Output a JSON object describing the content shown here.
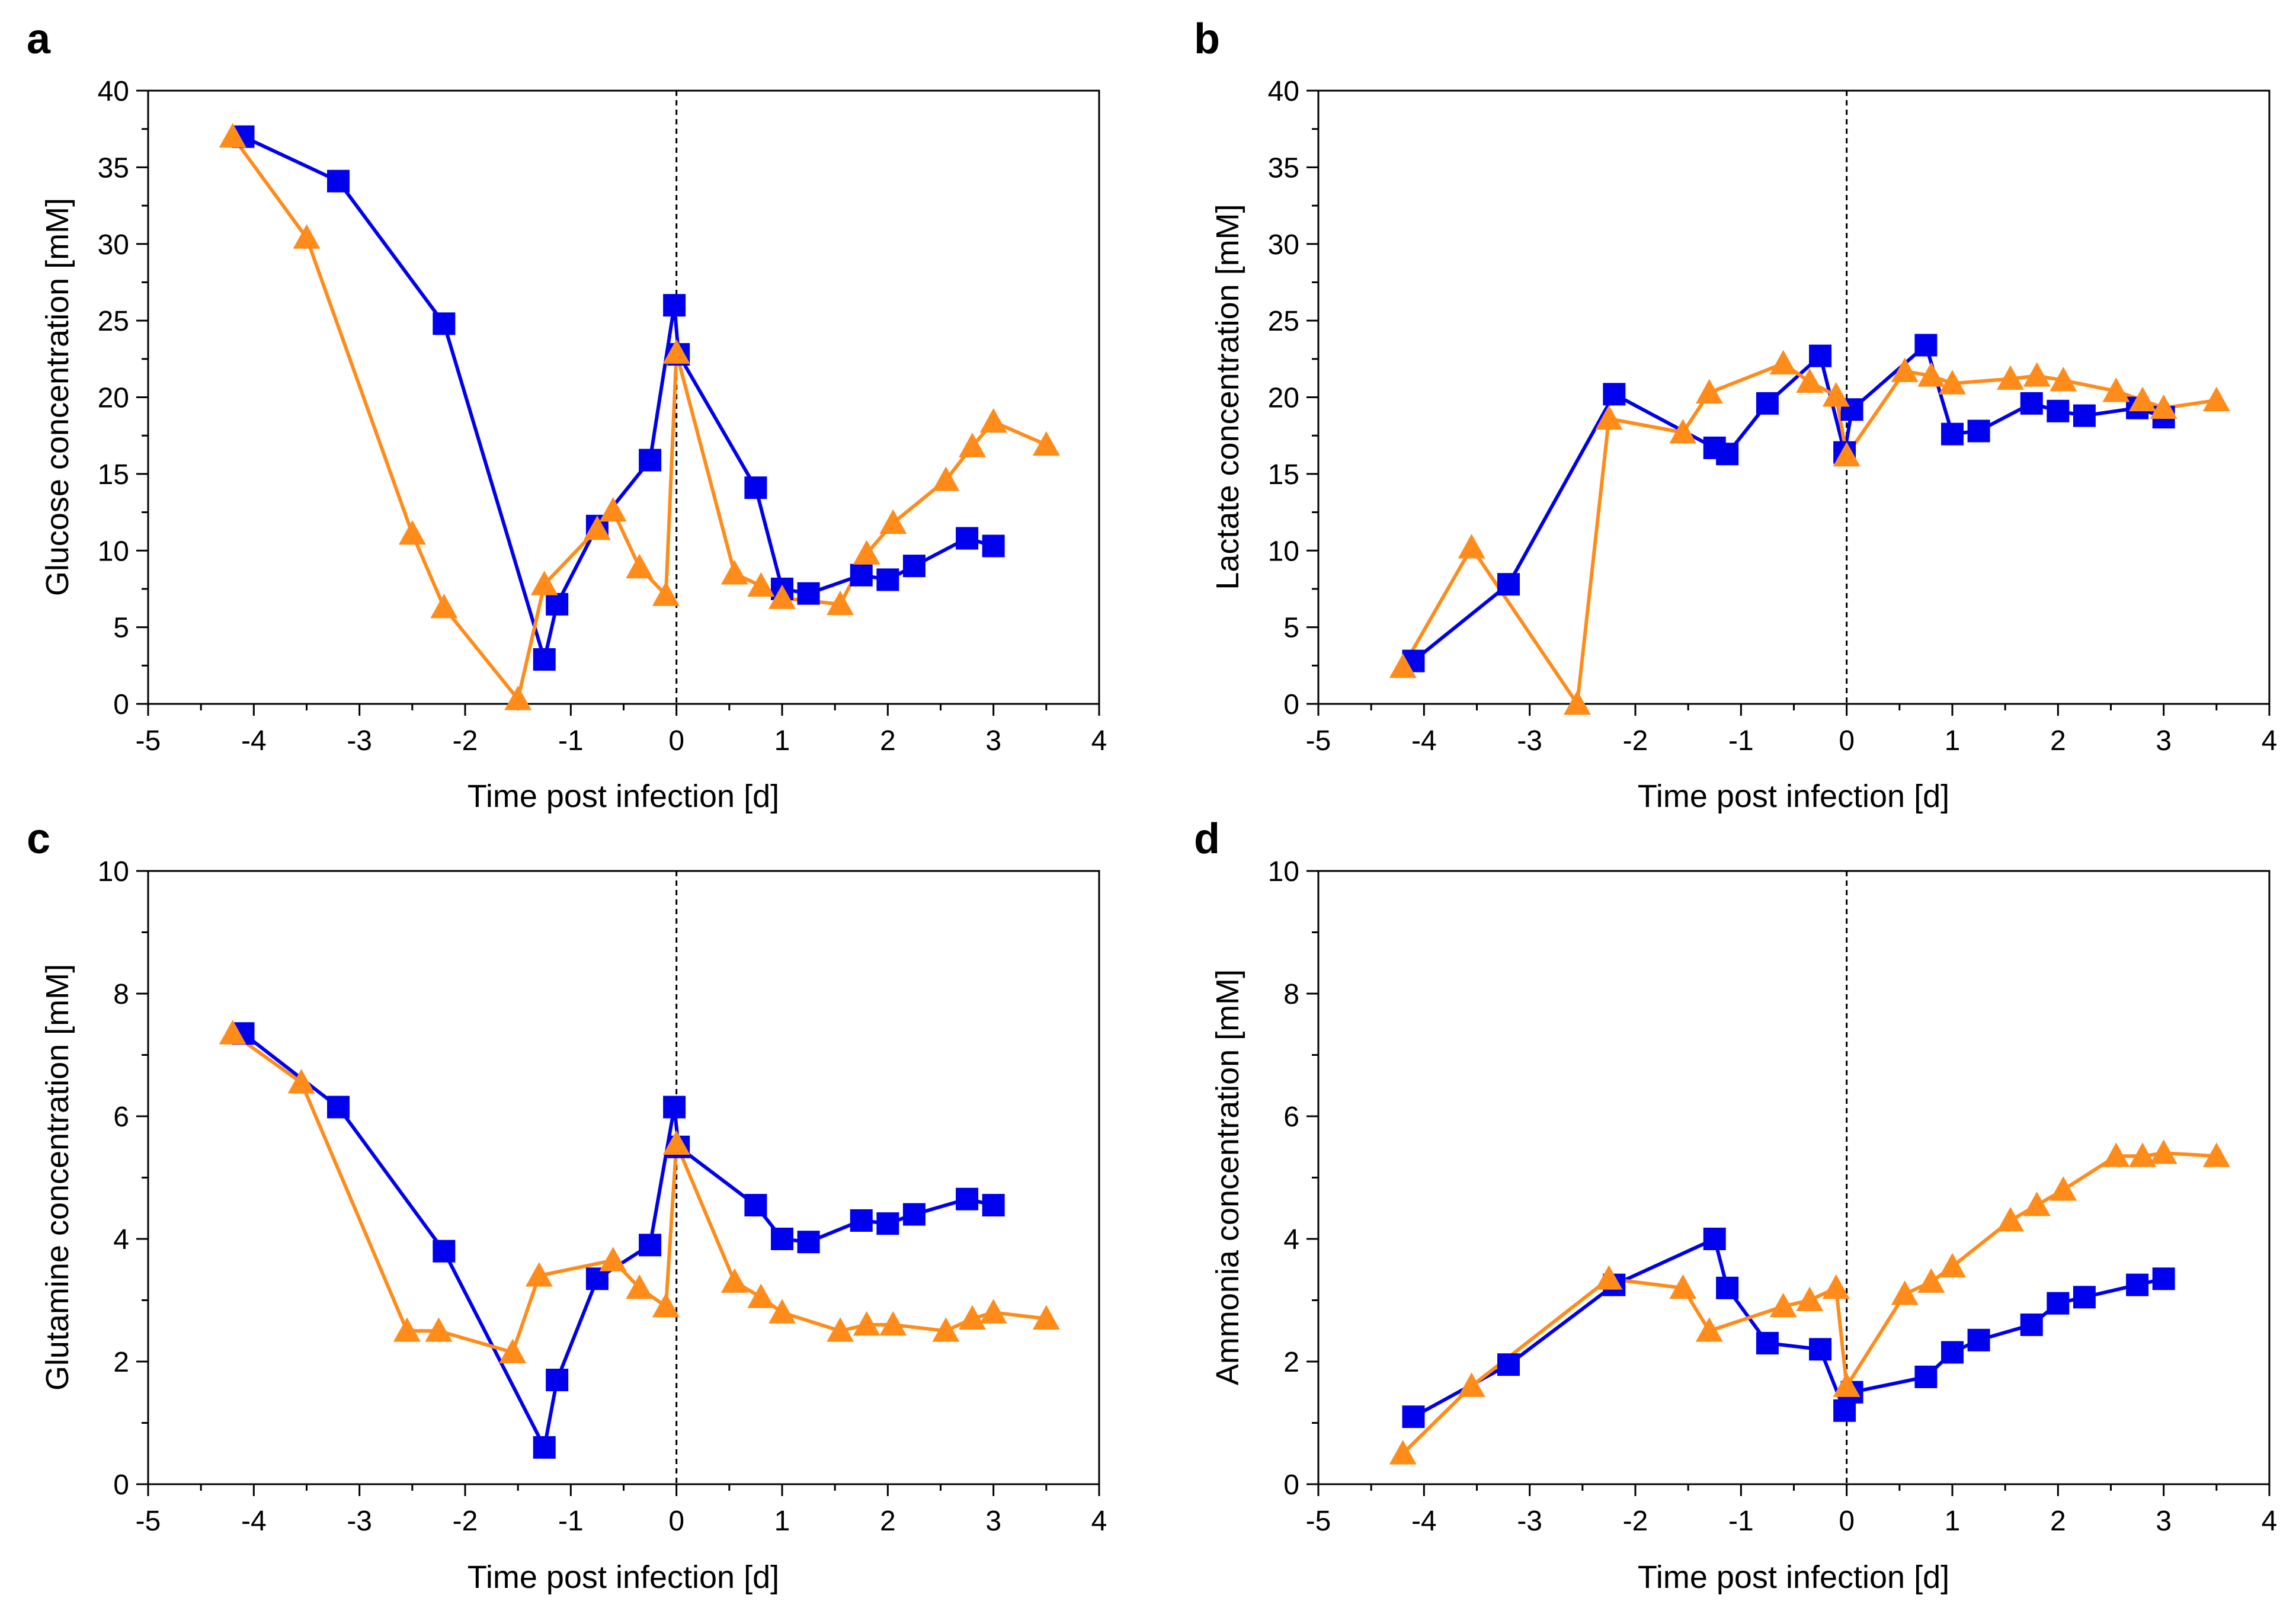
{
  "colors": {
    "series_blue": "#0000ee",
    "series_orange": "#ff8c1a",
    "axis": "#000000",
    "infection_line": "#000000"
  },
  "chart_data": [
    {
      "panel": "a",
      "type": "line",
      "xlabel": "Time post infection [d]",
      "ylabel": "Glucose concentration [mM]",
      "xlim": [
        -5,
        4
      ],
      "ylim": [
        0,
        40
      ],
      "xticks": [
        -5,
        -4,
        -3,
        -2,
        -1,
        0,
        1,
        2,
        3,
        4
      ],
      "yticks": [
        0,
        5,
        10,
        15,
        20,
        25,
        30,
        35,
        40
      ],
      "vline_x": 0,
      "series": [
        {
          "name": "square series",
          "marker": "square",
          "color": "#0000ee",
          "x": [
            -4.1,
            -3.2,
            -2.2,
            -1.25,
            -1.13,
            -0.75,
            -0.25,
            -0.02,
            0.02,
            0.75,
            1.0,
            1.25,
            1.75,
            2.0,
            2.25,
            2.75,
            3.0
          ],
          "y": [
            37,
            34.1,
            24.8,
            2.9,
            6.5,
            11.6,
            15.9,
            26,
            22.8,
            14.1,
            7.5,
            7.2,
            8.4,
            8.1,
            9,
            10.8,
            10.3
          ]
        },
        {
          "name": "triangle series",
          "marker": "triangle",
          "color": "#ff8c1a",
          "x": [
            -4.2,
            -3.5,
            -2.5,
            -2.2,
            -1.5,
            -1.25,
            -0.75,
            -0.6,
            -0.35,
            -0.1,
            0.0,
            0.55,
            0.8,
            1.0,
            1.55,
            1.8,
            2.05,
            2.55,
            2.8,
            3.0,
            3.5
          ],
          "y": [
            37,
            30.4,
            11.1,
            6.3,
            0.3,
            7.8,
            11.4,
            12.6,
            8.9,
            7.1,
            22.9,
            8.5,
            7.7,
            6.9,
            6.5,
            9.8,
            11.8,
            14.6,
            16.8,
            18.4,
            16.9
          ]
        }
      ]
    },
    {
      "panel": "b",
      "type": "line",
      "xlabel": "Time post infection [d]",
      "ylabel": "Lactate concentration [mM]",
      "xlim": [
        -5,
        4
      ],
      "ylim": [
        0,
        40
      ],
      "xticks": [
        -5,
        -4,
        -3,
        -2,
        -1,
        0,
        1,
        2,
        3,
        4
      ],
      "yticks": [
        0,
        5,
        10,
        15,
        20,
        25,
        30,
        35,
        40
      ],
      "vline_x": 0,
      "series": [
        {
          "name": "square series",
          "marker": "square",
          "color": "#0000ee",
          "x": [
            -4.1,
            -3.2,
            -2.2,
            -1.25,
            -1.13,
            -0.75,
            -0.25,
            -0.02,
            0.05,
            0.75,
            1.0,
            1.25,
            1.75,
            2.0,
            2.25,
            2.75,
            3.0
          ],
          "y": [
            2.8,
            7.8,
            20.2,
            16.7,
            16.3,
            19.6,
            22.7,
            16.4,
            19.2,
            23.4,
            17.6,
            17.8,
            19.6,
            19.1,
            18.8,
            19.3,
            18.7
          ]
        },
        {
          "name": "triangle series",
          "marker": "triangle",
          "color": "#ff8c1a",
          "x": [
            -4.2,
            -3.55,
            -2.55,
            -2.25,
            -1.55,
            -1.3,
            -0.6,
            -0.35,
            -0.1,
            0.0,
            0.55,
            0.8,
            1.0,
            1.55,
            1.8,
            2.05,
            2.55,
            2.8,
            3.0,
            3.5
          ],
          "y": [
            2.4,
            10.2,
            0,
            18.6,
            17.7,
            20.3,
            22.2,
            21,
            20.1,
            16.2,
            21.7,
            21.4,
            20.9,
            21.2,
            21.4,
            21.1,
            20.4,
            19.8,
            19.3,
            19.8
          ]
        }
      ]
    },
    {
      "panel": "c",
      "type": "line",
      "xlabel": "Time post infection [d]",
      "ylabel": "Glutamine concentration [mM]",
      "xlim": [
        -5,
        4
      ],
      "ylim": [
        0,
        10
      ],
      "xticks": [
        -5,
        -4,
        -3,
        -2,
        -1,
        0,
        1,
        2,
        3,
        4
      ],
      "yticks": [
        0,
        2,
        4,
        6,
        8,
        10
      ],
      "vline_x": 0,
      "series": [
        {
          "name": "square series",
          "marker": "square",
          "color": "#0000ee",
          "x": [
            -4.1,
            -3.2,
            -2.2,
            -1.25,
            -1.13,
            -0.75,
            -0.25,
            -0.02,
            0.02,
            0.75,
            1.0,
            1.25,
            1.75,
            2.0,
            2.25,
            2.75,
            3.0
          ],
          "y": [
            7.35,
            6.15,
            3.8,
            0.6,
            1.7,
            3.35,
            3.9,
            6.15,
            5.5,
            4.55,
            4.0,
            3.95,
            4.3,
            4.25,
            4.4,
            4.65,
            4.55
          ]
        },
        {
          "name": "triangle series",
          "marker": "triangle",
          "color": "#ff8c1a",
          "x": [
            -4.2,
            -3.55,
            -2.55,
            -2.25,
            -1.55,
            -1.3,
            -0.6,
            -0.35,
            -0.1,
            0.0,
            0.55,
            0.8,
            1.0,
            1.55,
            1.8,
            2.05,
            2.55,
            2.8,
            3.0,
            3.5
          ],
          "y": [
            7.35,
            6.55,
            2.5,
            2.5,
            2.15,
            3.4,
            3.65,
            3.2,
            2.9,
            5.55,
            3.3,
            3.05,
            2.8,
            2.5,
            2.6,
            2.6,
            2.5,
            2.7,
            2.8,
            2.7
          ]
        }
      ]
    },
    {
      "panel": "d",
      "type": "line",
      "xlabel": "Time post infection [d]",
      "ylabel": "Ammonia concentration [mM]",
      "xlim": [
        -5,
        4
      ],
      "ylim": [
        0,
        10
      ],
      "xticks": [
        -5,
        -4,
        -3,
        -2,
        -1,
        0,
        1,
        2,
        3,
        4
      ],
      "yticks": [
        0,
        2,
        4,
        6,
        8,
        10
      ],
      "vline_x": 0,
      "series": [
        {
          "name": "square series",
          "marker": "square",
          "color": "#0000ee",
          "x": [
            -4.1,
            -3.2,
            -2.2,
            -1.25,
            -1.13,
            -0.75,
            -0.25,
            -0.02,
            0.05,
            0.75,
            1.0,
            1.25,
            1.75,
            2.0,
            2.25,
            2.75,
            3.0
          ],
          "y": [
            1.1,
            1.95,
            3.25,
            4.0,
            3.2,
            2.3,
            2.2,
            1.2,
            1.5,
            1.75,
            2.15,
            2.35,
            2.6,
            2.95,
            3.05,
            3.25,
            3.35
          ]
        },
        {
          "name": "triangle series",
          "marker": "triangle",
          "color": "#ff8c1a",
          "x": [
            -4.2,
            -3.55,
            -2.25,
            -1.55,
            -1.3,
            -0.6,
            -0.35,
            -0.1,
            0.0,
            0.55,
            0.8,
            1.0,
            1.55,
            1.8,
            2.05,
            2.55,
            2.8,
            3.0,
            3.5
          ],
          "y": [
            0.5,
            1.6,
            3.35,
            3.2,
            2.5,
            2.9,
            3.0,
            3.2,
            1.6,
            3.1,
            3.3,
            3.55,
            4.3,
            4.55,
            4.8,
            5.35,
            5.35,
            5.4,
            5.35
          ]
        }
      ]
    }
  ]
}
